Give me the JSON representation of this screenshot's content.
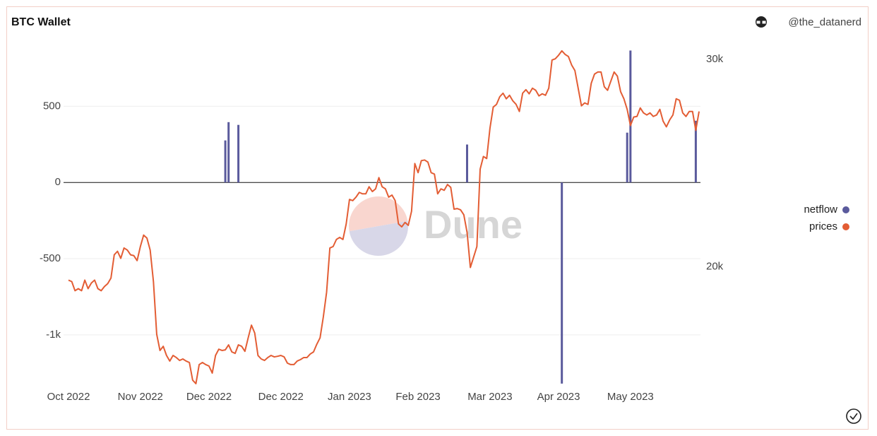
{
  "chart_data": {
    "type": "combo",
    "title": "BTC Wallet",
    "author": "@the_datanerd",
    "watermark": "Dune",
    "legend": "right",
    "grid": true,
    "categories": [
      "Oct 2022",
      null,
      null,
      null,
      null,
      null,
      null,
      null,
      null,
      null,
      null,
      null,
      null,
      null,
      null,
      null,
      null,
      null,
      null,
      null,
      null,
      null,
      "Nov 2022",
      null,
      null,
      null,
      null,
      null,
      null,
      null,
      null,
      null,
      null,
      null,
      null,
      null,
      null,
      null,
      null,
      null,
      null,
      null,
      null,
      "Dec 2022",
      null,
      null,
      null,
      null,
      null,
      null,
      null,
      null,
      null,
      null,
      null,
      null,
      null,
      null,
      null,
      null,
      null,
      null,
      null,
      null,
      null,
      "Dec 2022",
      null,
      null,
      null,
      null,
      null,
      null,
      null,
      null,
      null,
      null,
      null,
      null,
      null,
      null,
      null,
      null,
      null,
      null,
      null,
      null,
      "Jan 2023",
      null,
      null,
      null,
      null,
      null,
      null,
      null,
      null,
      null,
      null,
      null,
      null,
      null,
      null,
      null,
      null,
      null,
      null,
      null,
      null,
      "Feb 2023",
      null,
      null,
      null,
      null,
      null,
      null,
      null,
      null,
      null,
      null,
      null,
      null,
      null,
      null,
      null,
      null,
      null,
      null,
      null,
      null,
      null,
      "Mar 2023",
      null,
      null,
      null,
      null,
      null,
      null,
      null,
      null,
      null,
      null,
      null,
      null,
      null,
      null,
      null,
      null,
      null,
      null,
      null,
      null,
      "Apr 2023",
      null,
      null,
      null,
      null,
      null,
      null,
      null,
      null,
      null,
      null,
      null,
      null,
      null,
      null,
      null,
      null,
      null,
      null,
      null,
      null,
      null,
      "May 2023",
      null,
      null,
      null,
      null,
      null,
      null,
      null,
      null,
      null,
      null,
      null,
      null,
      null,
      null,
      null,
      null,
      null,
      null,
      null,
      null,
      null
    ],
    "series": [
      {
        "name": "netflow",
        "color": "#5a5a9c",
        "values": [
          0,
          0,
          0,
          0,
          0,
          0,
          0,
          0,
          0,
          0,
          0,
          0,
          0,
          0,
          0,
          0,
          0,
          0,
          0,
          0,
          0,
          0,
          0,
          0,
          0,
          0,
          0,
          0,
          0,
          0,
          0,
          0,
          0,
          0,
          0,
          0,
          0,
          0,
          0,
          0,
          0,
          0,
          0,
          0,
          0,
          0,
          0,
          0,
          276,
          396,
          0,
          0,
          378,
          0,
          0,
          0,
          0,
          0,
          0,
          0,
          0,
          0,
          0,
          0,
          0,
          0,
          0,
          0,
          0,
          0,
          0,
          0,
          0,
          0,
          0,
          0,
          0,
          0,
          0,
          0,
          0,
          0,
          0,
          0,
          0,
          0,
          0,
          0,
          0,
          0,
          0,
          0,
          0,
          0,
          0,
          0,
          0,
          0,
          0,
          0,
          0,
          0,
          0,
          0,
          0,
          0,
          0,
          0,
          0,
          0,
          0,
          0,
          0,
          0,
          0,
          0,
          0,
          0,
          0,
          0,
          0,
          0,
          249,
          0,
          0,
          0,
          0,
          0,
          0,
          0,
          0,
          0,
          0,
          0,
          0,
          0,
          0,
          0,
          0,
          0,
          0,
          0,
          0,
          0,
          0,
          0,
          0,
          0,
          0,
          0,
          0,
          -1320,
          0,
          0,
          0,
          0,
          0,
          0,
          0,
          0,
          0,
          0,
          0,
          0,
          0,
          0,
          0,
          0,
          0,
          0,
          0,
          327,
          866,
          0,
          0,
          0,
          0,
          0,
          0,
          0,
          0,
          0,
          0,
          0,
          0,
          0,
          0,
          0,
          0,
          0,
          0,
          0,
          405,
          0
        ]
      },
      {
        "name": "prices",
        "color": "#e35d34",
        "axis": "y2",
        "values": [
          19360,
          19290,
          18850,
          18950,
          18850,
          19360,
          18950,
          19220,
          19360,
          18950,
          18850,
          19050,
          19190,
          19460,
          20580,
          20750,
          20410,
          20910,
          20810,
          20580,
          20540,
          20300,
          20980,
          21530,
          21390,
          20810,
          19290,
          16750,
          15970,
          16170,
          15730,
          15460,
          15730,
          15630,
          15490,
          15560,
          15460,
          15390,
          14540,
          14370,
          15290,
          15390,
          15290,
          15220,
          14880,
          15730,
          16030,
          15970,
          16000,
          16240,
          15900,
          15830,
          16240,
          16170,
          15930,
          16580,
          17190,
          16810,
          15730,
          15560,
          15490,
          15630,
          15730,
          15660,
          15690,
          15730,
          15660,
          15360,
          15290,
          15290,
          15460,
          15530,
          15630,
          15630,
          15800,
          15900,
          16270,
          16580,
          17590,
          18780,
          20910,
          20980,
          21320,
          21420,
          21320,
          22070,
          23250,
          23190,
          23360,
          23590,
          23520,
          23520,
          23860,
          23630,
          23760,
          24300,
          23860,
          23760,
          23360,
          23460,
          23190,
          22070,
          21930,
          22140,
          22000,
          22680,
          24980,
          24540,
          25120,
          25150,
          25050,
          24540,
          24470,
          23520,
          23760,
          23690,
          23970,
          23830,
          22780,
          22810,
          22750,
          22510,
          21660,
          19970,
          20470,
          20980,
          24710,
          25320,
          25220,
          26680,
          27700,
          27830,
          28200,
          28370,
          28100,
          28270,
          28000,
          27830,
          27490,
          28370,
          28540,
          28340,
          28610,
          28510,
          28240,
          28340,
          28270,
          28610,
          29970,
          30030,
          30200,
          30410,
          30240,
          30140,
          29730,
          29460,
          28610,
          27760,
          27900,
          27830,
          28850,
          29290,
          29390,
          29390,
          28680,
          28510,
          28950,
          29390,
          29190,
          28440,
          28100,
          27590,
          26810,
          27220,
          27250,
          27660,
          27420,
          27320,
          27420,
          27250,
          27320,
          27590,
          27020,
          26750,
          27080,
          27320,
          28100,
          28030,
          27420,
          27250,
          27490,
          27490,
          26580,
          27490
        ]
      }
    ],
    "ylim": [
      -1330,
      910
    ],
    "yticks": [
      {
        "value": -1000,
        "label": "-1k"
      },
      -500,
      0,
      500
    ],
    "y2lim": [
      14300,
      30750
    ],
    "y2ticks": [
      {
        "value": 20000,
        "label": "20k"
      },
      {
        "value": 30000,
        "label": "30k"
      }
    ]
  }
}
